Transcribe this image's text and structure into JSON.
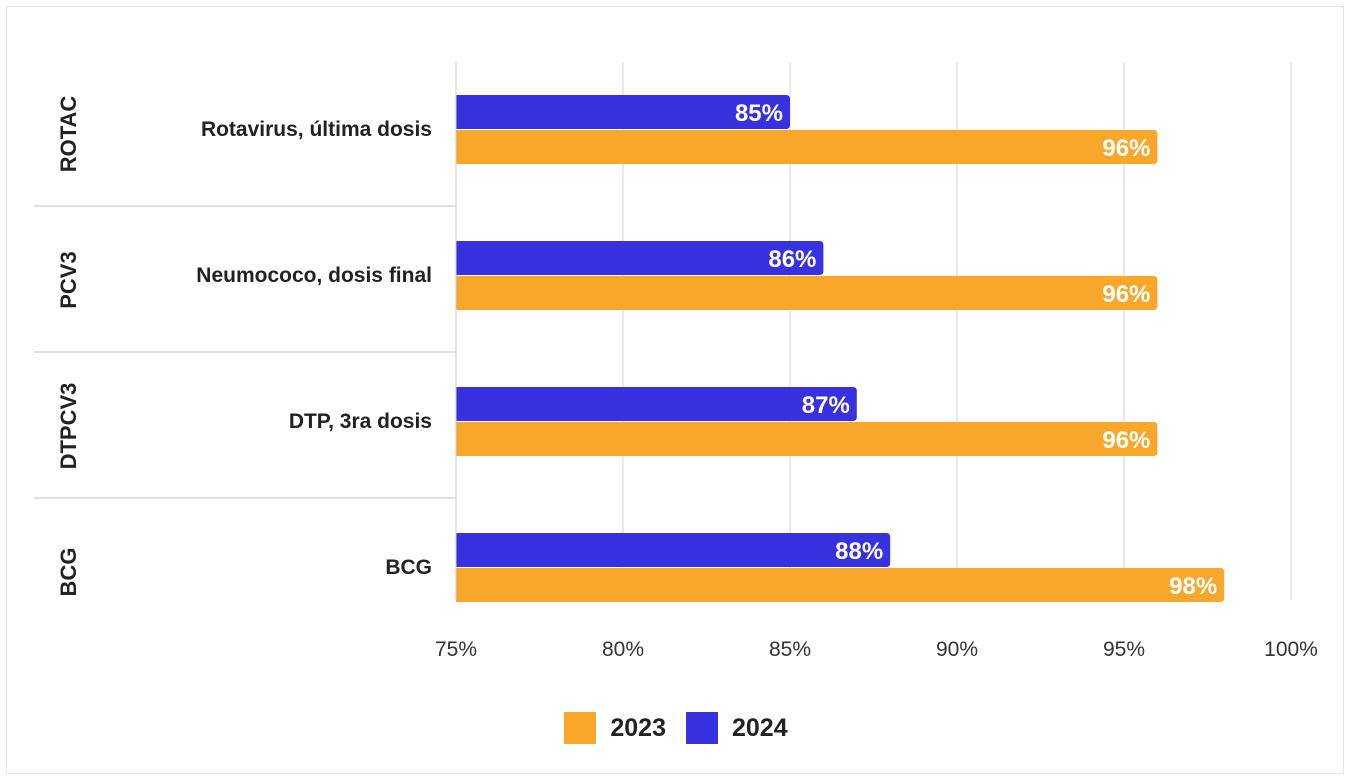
{
  "chart_data": {
    "type": "bar",
    "orientation": "horizontal",
    "groups": [
      {
        "code": "ROTAC",
        "label": "Rotavirus, última dosis"
      },
      {
        "code": "PCV3",
        "label": "Neumococo, dosis final"
      },
      {
        "code": "DTPCV3",
        "label": "DTP, 3ra dosis"
      },
      {
        "code": "BCG",
        "label": "BCG"
      }
    ],
    "series": [
      {
        "name": "2024",
        "color": "#3731e0",
        "values": [
          85,
          86,
          87,
          88
        ],
        "labels": [
          "85%",
          "86%",
          "87%",
          "88%"
        ]
      },
      {
        "name": "2023",
        "color": "#f9a72b",
        "values": [
          96,
          96,
          96,
          98
        ],
        "labels": [
          "96%",
          "96%",
          "96%",
          "98%"
        ]
      }
    ],
    "xlim": [
      75,
      100
    ],
    "xticks": [
      75,
      80,
      85,
      90,
      95,
      100
    ],
    "xtick_labels": [
      "75%",
      "80%",
      "85%",
      "90%",
      "95%",
      "100%"
    ],
    "grid": true,
    "legend_position": "bottom",
    "legend": [
      {
        "name": "2023",
        "color": "#f9a72b"
      },
      {
        "name": "2024",
        "color": "#3731e0"
      }
    ]
  }
}
